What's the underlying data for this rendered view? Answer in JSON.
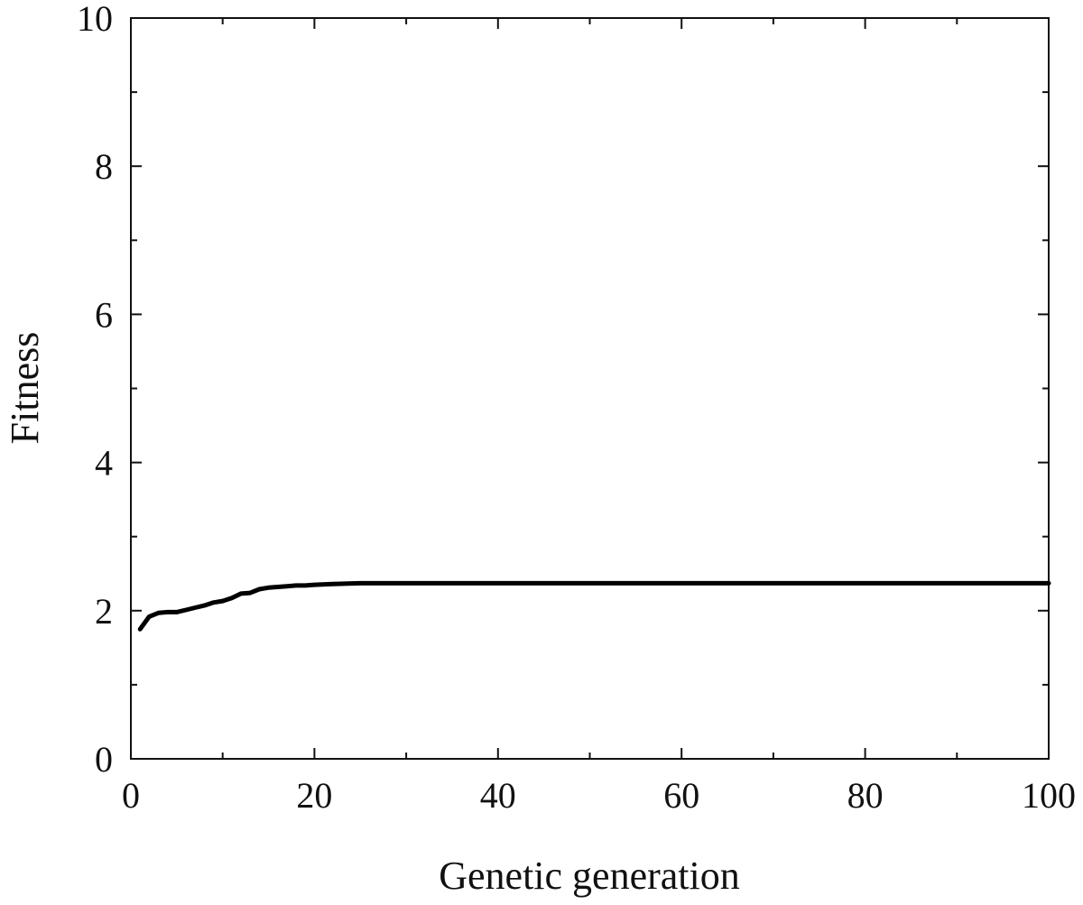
{
  "chart_data": {
    "type": "line",
    "title": "",
    "xlabel": "Genetic generation",
    "ylabel": "Fitness",
    "xlim": [
      0,
      100
    ],
    "ylim": [
      0,
      10
    ],
    "x_ticks": [
      0,
      20,
      40,
      60,
      80,
      100
    ],
    "x_tick_labels": [
      "0",
      "20",
      "40",
      "60",
      "80",
      "100"
    ],
    "y_ticks": [
      0,
      2,
      4,
      6,
      8,
      10
    ],
    "y_tick_labels": [
      "0",
      "2",
      "4",
      "6",
      "8",
      "10"
    ],
    "x_minor_ticks": [
      10,
      30,
      50,
      70,
      90
    ],
    "y_minor_ticks": [
      1,
      3,
      5,
      7,
      9
    ],
    "grid": false,
    "legend": "none",
    "line_color": "#000000",
    "series": [
      {
        "x": [
          1,
          2,
          3,
          4,
          5,
          6,
          7,
          8,
          9,
          10,
          11,
          12,
          13,
          14,
          15,
          16,
          17,
          18,
          19,
          20,
          22,
          25,
          30,
          40,
          50,
          60,
          70,
          80,
          90,
          100
        ],
        "y": [
          1.75,
          1.92,
          1.97,
          1.98,
          1.98,
          2.01,
          2.04,
          2.07,
          2.11,
          2.13,
          2.17,
          2.23,
          2.24,
          2.29,
          2.31,
          2.32,
          2.33,
          2.34,
          2.34,
          2.35,
          2.36,
          2.37,
          2.37,
          2.37,
          2.37,
          2.37,
          2.37,
          2.37,
          2.37,
          2.37
        ]
      }
    ]
  }
}
